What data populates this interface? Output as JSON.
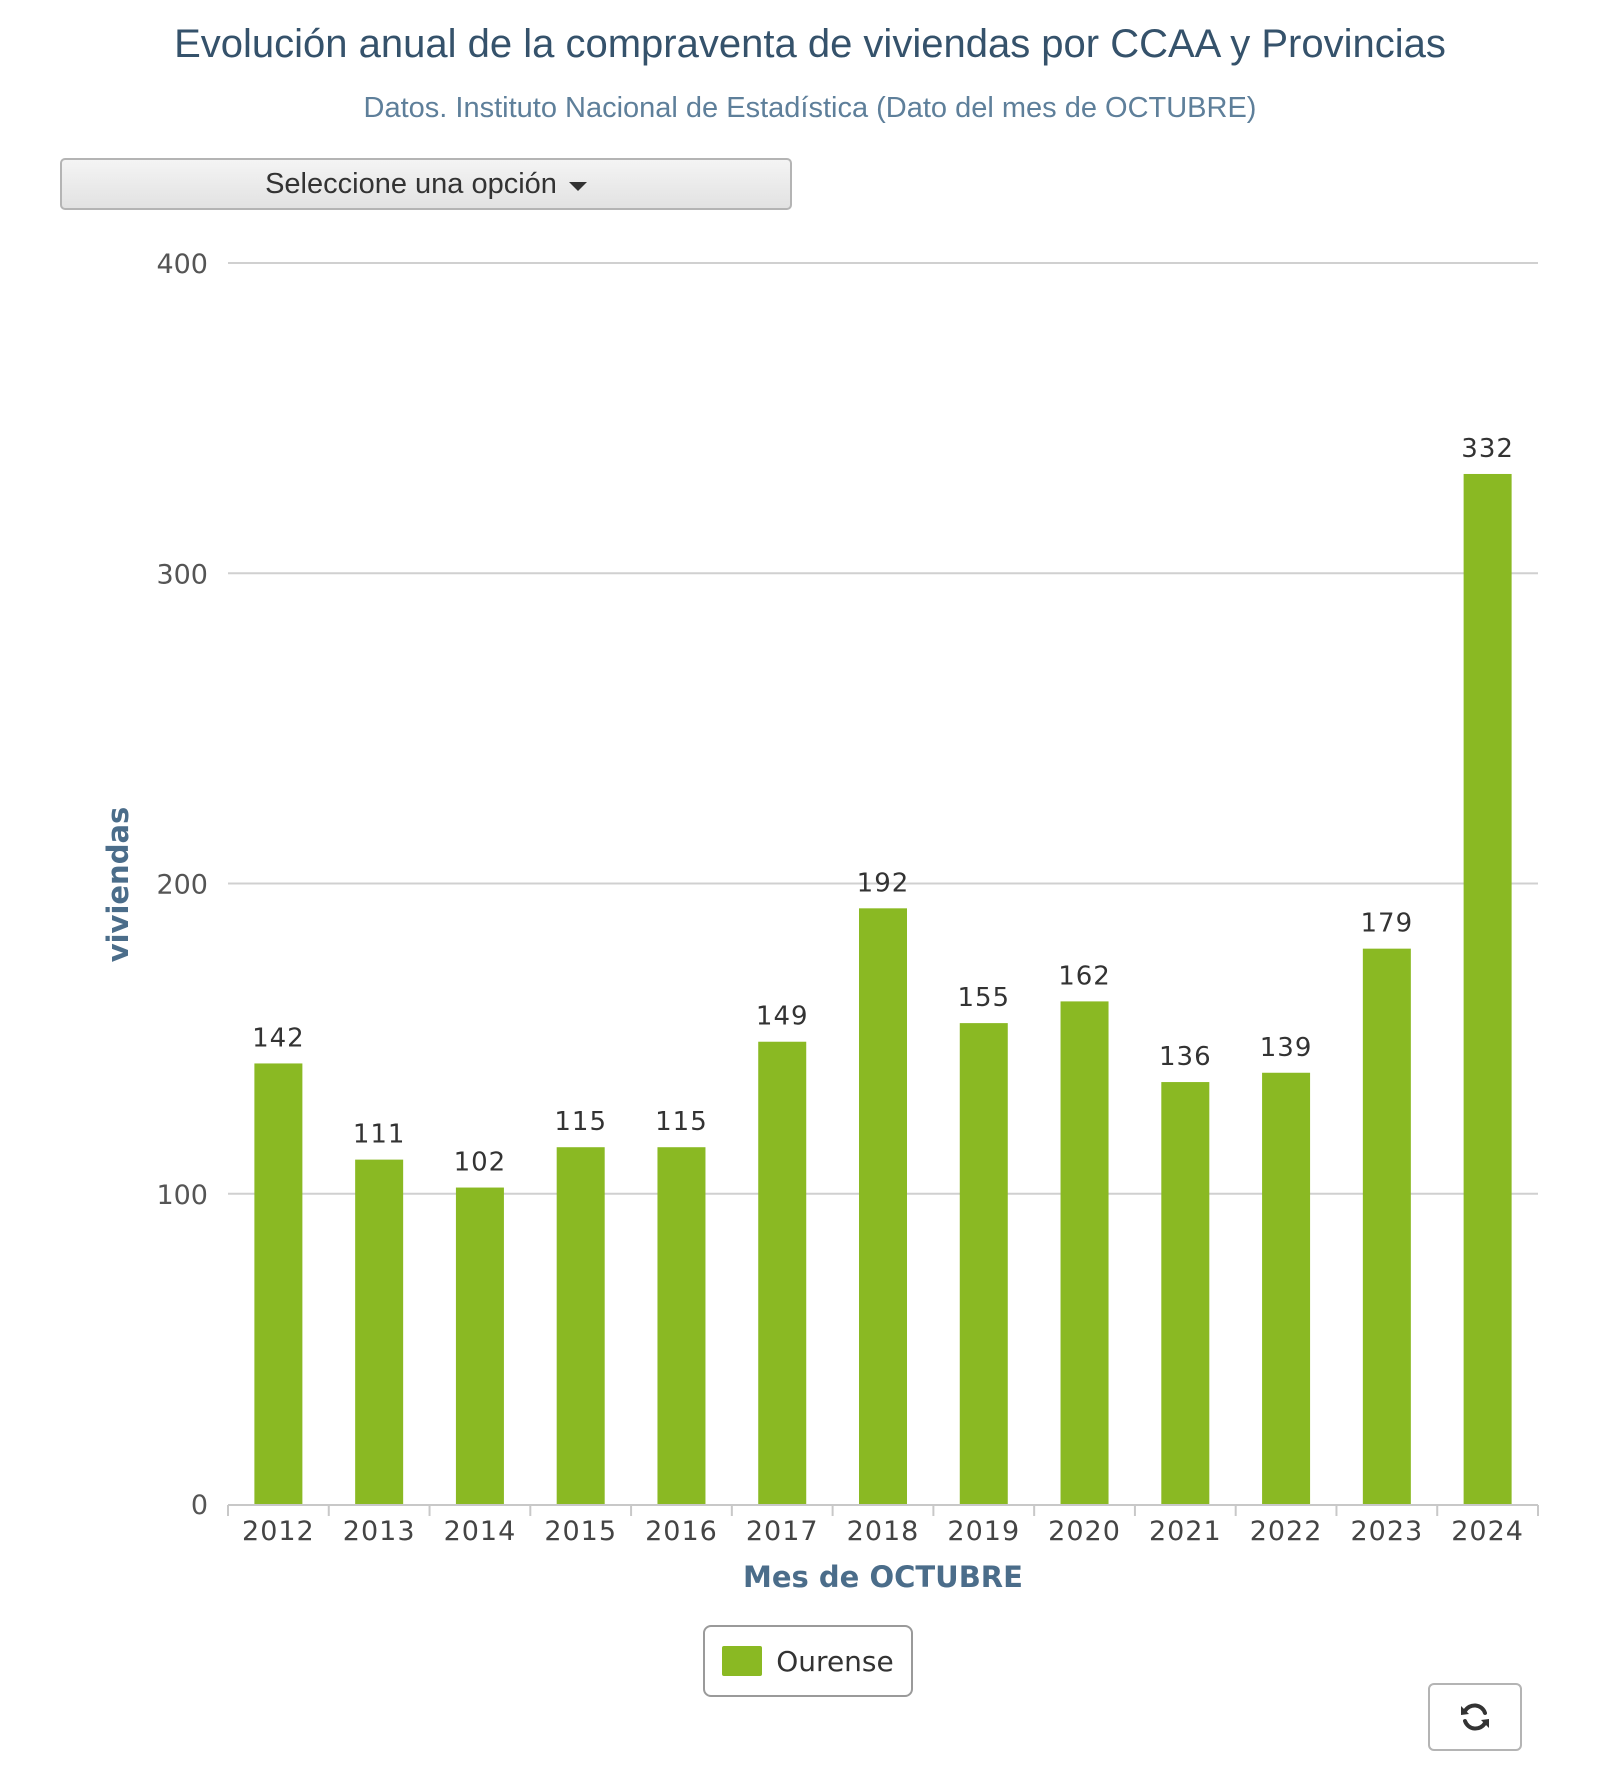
{
  "header": {
    "title": "Evolución anual de la compraventa de viviendas por CCAA y Provincias",
    "subtitle": "Datos. Instituto Nacional de Estadística (Dato del mes de OCTUBRE)"
  },
  "selector": {
    "label": "Seleccione una opción",
    "icon": "caret-down-icon"
  },
  "chart_data": {
    "type": "bar",
    "categories": [
      "2012",
      "2013",
      "2014",
      "2015",
      "2016",
      "2017",
      "2018",
      "2019",
      "2020",
      "2021",
      "2022",
      "2023",
      "2024"
    ],
    "series": [
      {
        "name": "Ourense",
        "color": "#8ab923",
        "values": [
          142,
          111,
          102,
          115,
          115,
          149,
          192,
          155,
          162,
          136,
          139,
          179,
          332
        ]
      }
    ],
    "xlabel": "Mes de OCTUBRE",
    "ylabel": "viviendas",
    "ylim": [
      0,
      400
    ],
    "yticks": [
      0,
      100,
      200,
      300,
      400
    ],
    "grid": true,
    "data_labels": true,
    "legend_position": "bottom-center"
  },
  "legend": {
    "label": "Ourense",
    "color": "#8ab923"
  },
  "controls": {
    "refresh_icon": "refresh-icon"
  },
  "colors": {
    "title": "#35526b",
    "subtitle": "#5e7f9a",
    "axis_title": "#4b6d8a",
    "grid": "#d0d0d0",
    "bar": "#8ab923"
  }
}
